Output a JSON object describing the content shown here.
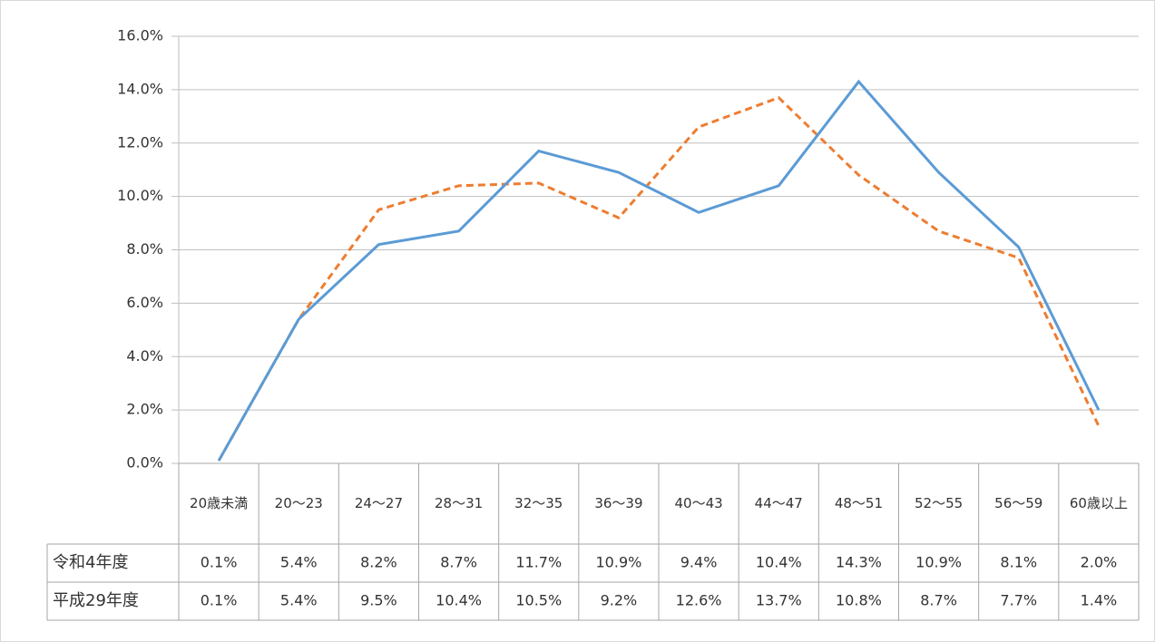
{
  "chart_data": {
    "type": "line",
    "categories": [
      "20歳未満",
      "20～23",
      "24～27",
      "28～31",
      "32～35",
      "36～39",
      "40～43",
      "44～47",
      "48～51",
      "52～55",
      "56～59",
      "60歳以上"
    ],
    "series": [
      {
        "name": "令和4年度",
        "color": "#5b9bd5",
        "line_style": "solid",
        "values": [
          0.1,
          5.4,
          8.2,
          8.7,
          11.7,
          10.9,
          9.4,
          10.4,
          14.3,
          10.9,
          8.1,
          2.0
        ],
        "value_labels": [
          "0.1%",
          "5.4%",
          "8.2%",
          "8.7%",
          "11.7%",
          "10.9%",
          "9.4%",
          "10.4%",
          "14.3%",
          "10.9%",
          "8.1%",
          "2.0%"
        ]
      },
      {
        "name": "平成29年度",
        "color": "#ed7d31",
        "line_style": "dashed",
        "values": [
          0.1,
          5.4,
          9.5,
          10.4,
          10.5,
          9.2,
          12.6,
          13.7,
          10.8,
          8.7,
          7.7,
          1.4
        ],
        "value_labels": [
          "0.1%",
          "5.4%",
          "9.5%",
          "10.4%",
          "10.5%",
          "9.2%",
          "12.6%",
          "13.7%",
          "10.8%",
          "8.7%",
          "7.7%",
          "1.4%"
        ]
      }
    ],
    "ylim": [
      0,
      16
    ],
    "yticks": [
      {
        "value": 0,
        "label": "0.0%"
      },
      {
        "value": 2,
        "label": "2.0%"
      },
      {
        "value": 4,
        "label": "4.0%"
      },
      {
        "value": 6,
        "label": "6.0%"
      },
      {
        "value": 8,
        "label": "8.0%"
      },
      {
        "value": 10,
        "label": "10.0%"
      },
      {
        "value": 12,
        "label": "12.0%"
      },
      {
        "value": 14,
        "label": "14.0%"
      },
      {
        "value": 16,
        "label": "16.0%"
      }
    ],
    "grid": true
  }
}
